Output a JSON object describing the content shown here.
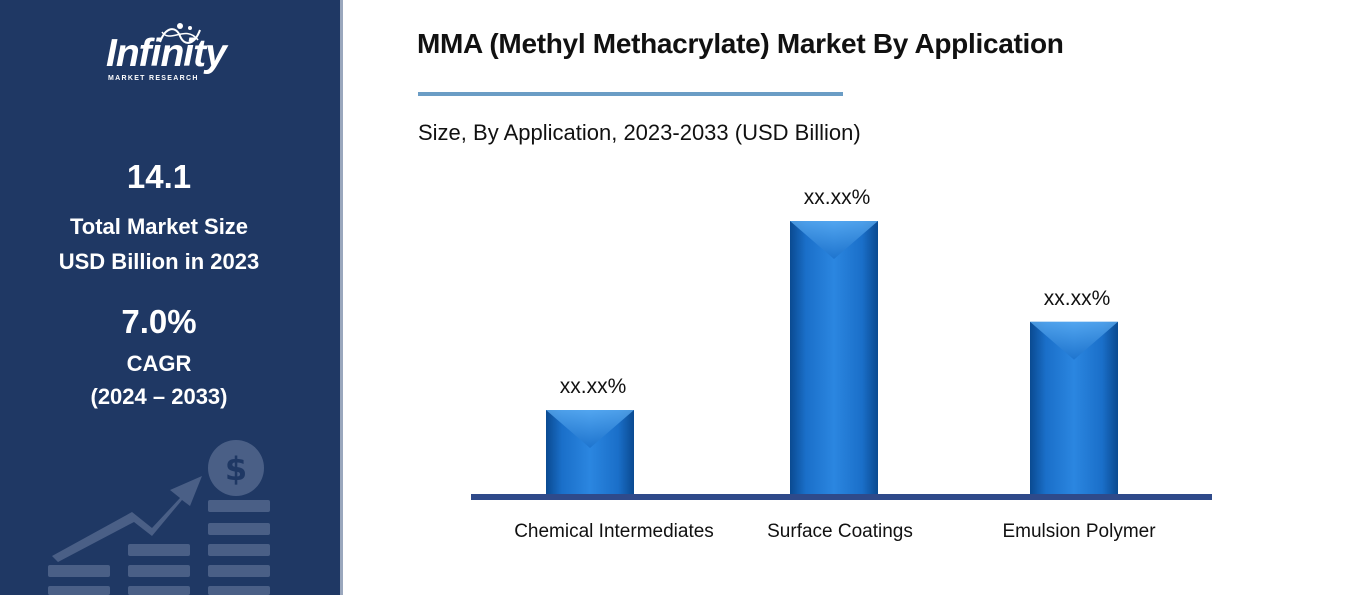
{
  "sidebar": {
    "logo": {
      "word": "Infinity",
      "sub": "MARKET RESEARCH"
    },
    "market_size": {
      "value": "14.1",
      "line1": "Total Market Size",
      "line2": "USD Billion in 2023"
    },
    "cagr": {
      "value": "7.0%",
      "line1": "CAGR",
      "line2": "(2024 – 2033)"
    },
    "deco_icon": "dollar-growth-chart-icon"
  },
  "colors": {
    "sidebar_bg": "#1f3864",
    "bar": "#1a6fc9",
    "bar_dark": "#0a4a91",
    "axis": "#2f4a8a",
    "title_rule": "#6b9dc5"
  },
  "chart_data": {
    "type": "bar",
    "title": "MMA (Methyl Methacrylate) Market By Application",
    "subtitle": "Size, By Application, 2023-2033 (USD Billion)",
    "categories": [
      "Chemical Intermediates",
      "Surface Coatings",
      "Emulsion Polymer"
    ],
    "values": [
      20,
      65,
      41
    ],
    "data_labels": [
      "xx.xx%",
      "xx.xx%",
      "xx.xx%"
    ],
    "ylim": [
      0,
      70
    ],
    "grid": false,
    "xlabel": "",
    "ylabel": ""
  }
}
